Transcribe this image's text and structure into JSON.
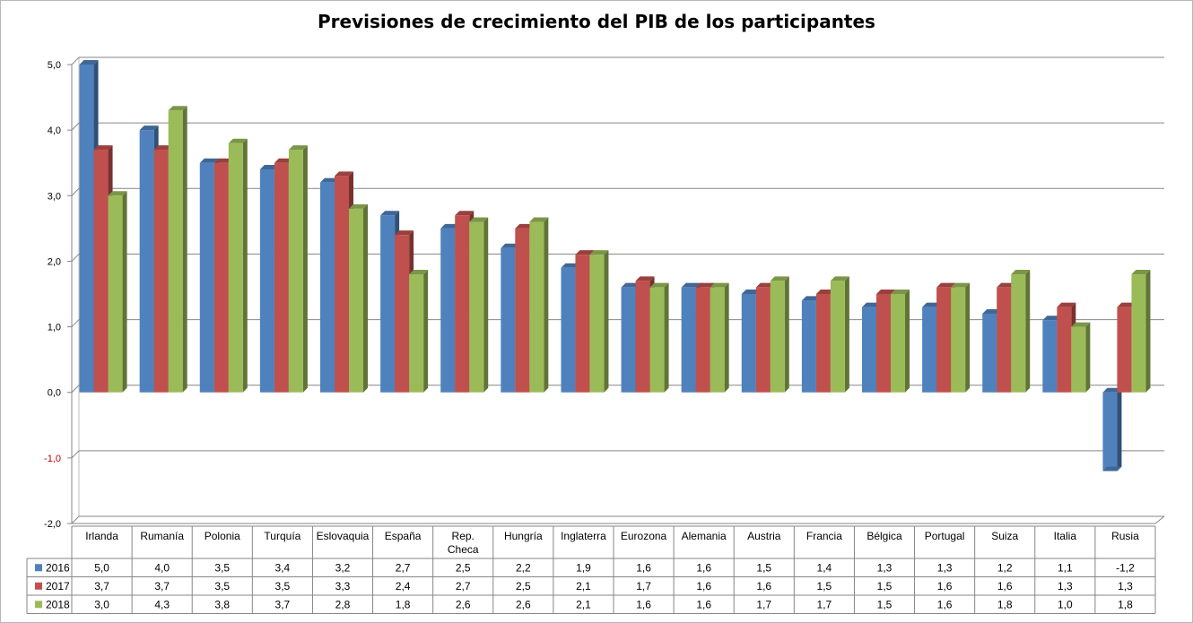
{
  "chart_data": {
    "type": "bar",
    "title": "Previsiones de crecimiento del PIB de los participantes",
    "categories": [
      "Irlanda",
      "Rumanía",
      "Polonia",
      "Turquía",
      "Eslovaquia",
      "España",
      "Rep. Checa",
      "Hungría",
      "Inglaterra",
      "Eurozona",
      "Alemania",
      "Austria",
      "Francia",
      "Bélgica",
      "Portugal",
      "Suiza",
      "Italia",
      "Rusia"
    ],
    "series": [
      {
        "name": "2016",
        "color": "#4f81bd",
        "values": [
          5.0,
          4.0,
          3.5,
          3.4,
          3.2,
          2.7,
          2.5,
          2.2,
          1.9,
          1.6,
          1.6,
          1.5,
          1.4,
          1.3,
          1.3,
          1.2,
          1.1,
          -1.2
        ],
        "labels": [
          "5,0",
          "4,0",
          "3,5",
          "3,4",
          "3,2",
          "2,7",
          "2,5",
          "2,2",
          "1,9",
          "1,6",
          "1,6",
          "1,5",
          "1,4",
          "1,3",
          "1,3",
          "1,2",
          "1,1",
          "-1,2"
        ]
      },
      {
        "name": "2017",
        "color": "#c0504d",
        "values": [
          3.7,
          3.7,
          3.5,
          3.5,
          3.3,
          2.4,
          2.7,
          2.5,
          2.1,
          1.7,
          1.6,
          1.6,
          1.5,
          1.5,
          1.6,
          1.6,
          1.3,
          1.3
        ],
        "labels": [
          "3,7",
          "3,7",
          "3,5",
          "3,5",
          "3,3",
          "2,4",
          "2,7",
          "2,5",
          "2,1",
          "1,7",
          "1,6",
          "1,6",
          "1,5",
          "1,5",
          "1,6",
          "1,6",
          "1,3",
          "1,3"
        ]
      },
      {
        "name": "2018",
        "color": "#9bbb59",
        "values": [
          3.0,
          4.3,
          3.8,
          3.7,
          2.8,
          1.8,
          2.6,
          2.6,
          2.1,
          1.6,
          1.6,
          1.7,
          1.7,
          1.5,
          1.6,
          1.8,
          1.0,
          1.8
        ],
        "labels": [
          "3,0",
          "4,3",
          "3,8",
          "3,7",
          "2,8",
          "1,8",
          "2,6",
          "2,6",
          "2,1",
          "1,6",
          "1,6",
          "1,7",
          "1,7",
          "1,5",
          "1,6",
          "1,8",
          "1,0",
          "1,8"
        ]
      }
    ],
    "yticks": [
      5.0,
      4.0,
      3.0,
      2.0,
      1.0,
      0.0,
      -1.0,
      -2.0
    ],
    "ytick_labels": [
      "5,0",
      "4,0",
      "3,0",
      "2,0",
      "1,0",
      "0,0",
      "-1,0",
      "-2,0"
    ],
    "ytick_colors": [
      "#000000",
      "#000000",
      "#000000",
      "#000000",
      "#000000",
      "#000000",
      "#c00000",
      "#000000"
    ],
    "ylim": [
      -2.0,
      5.0
    ],
    "grid": true,
    "legend": "data table below the plot",
    "xlabel": "",
    "ylabel": ""
  }
}
